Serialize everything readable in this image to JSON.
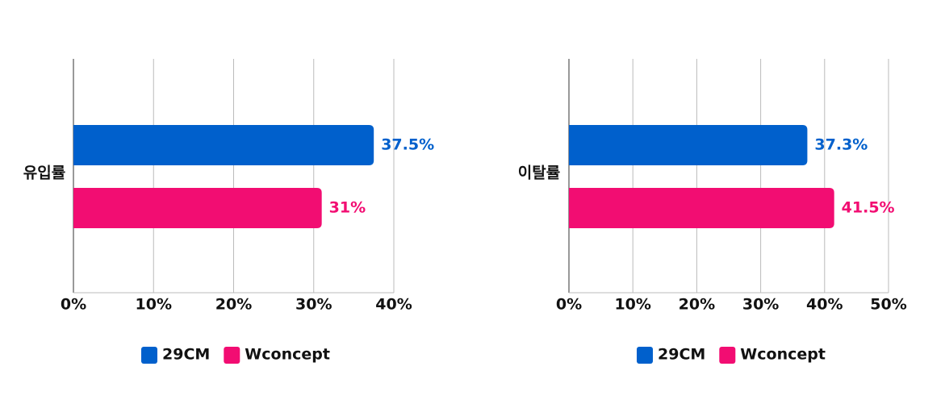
{
  "chart_data": [
    {
      "type": "bar",
      "orientation": "horizontal",
      "categories": [
        "유입률"
      ],
      "series": [
        {
          "name": "29CM",
          "color": "#0060cc",
          "values": [
            37.5
          ],
          "value_labels": [
            "37.5%"
          ]
        },
        {
          "name": "Wconcept",
          "color": "#f20d72",
          "values": [
            31
          ],
          "value_labels": [
            "31%"
          ]
        }
      ],
      "xlim": [
        0,
        40
      ],
      "xticks": [
        {
          "value": 0,
          "label": "0%"
        },
        {
          "value": 10,
          "label": "10%"
        },
        {
          "value": 20,
          "label": "20%"
        },
        {
          "value": 30,
          "label": "30%"
        },
        {
          "value": 40,
          "label": "40%"
        }
      ],
      "grid": true,
      "legend": "bottom"
    },
    {
      "type": "bar",
      "orientation": "horizontal",
      "categories": [
        "이탈률"
      ],
      "series": [
        {
          "name": "29CM",
          "color": "#0060cc",
          "values": [
            37.3
          ],
          "value_labels": [
            "37.3%"
          ]
        },
        {
          "name": "Wconcept",
          "color": "#f20d72",
          "values": [
            41.5
          ],
          "value_labels": [
            "41.5%"
          ]
        }
      ],
      "xlim": [
        0,
        50
      ],
      "xticks": [
        {
          "value": 0,
          "label": "0%"
        },
        {
          "value": 10,
          "label": "10%"
        },
        {
          "value": 20,
          "label": "20%"
        },
        {
          "value": 30,
          "label": "30%"
        },
        {
          "value": 40,
          "label": "40%"
        },
        {
          "value": 50,
          "label": "50%"
        }
      ],
      "grid": true,
      "legend": "bottom"
    }
  ]
}
